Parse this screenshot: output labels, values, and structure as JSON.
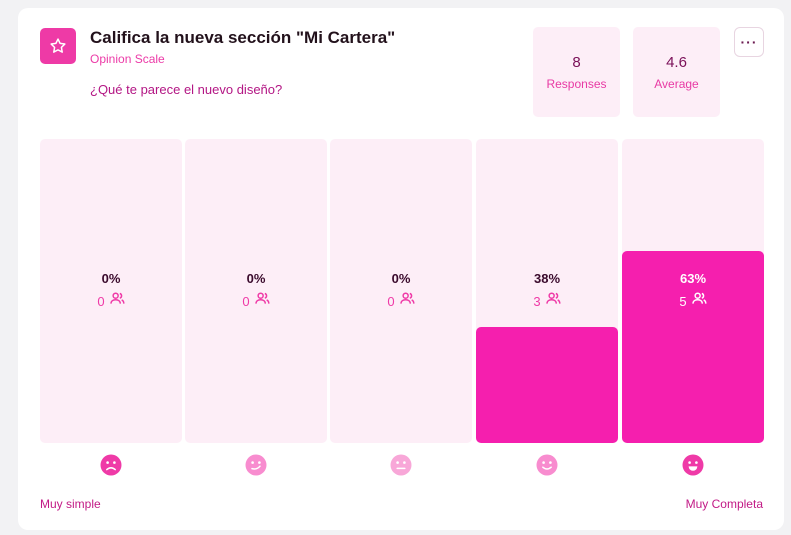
{
  "header": {
    "title": "Califica la nueva sección \"Mi Cartera\"",
    "subtitle": "Opinion Scale",
    "question": "¿Qué te parece el nuevo diseño?",
    "icon": "star-icon"
  },
  "stats": {
    "responses": {
      "value": "8",
      "label": "Responses"
    },
    "average": {
      "value": "4.6",
      "label": "Average"
    }
  },
  "menu": {
    "label": "···",
    "icon": "more-icon"
  },
  "scale": {
    "low_label": "Muy simple",
    "high_label": "Muy Completa"
  },
  "options": [
    {
      "pct": "0%",
      "count": "0",
      "fraction": 0,
      "icon": "frown-face-icon"
    },
    {
      "pct": "0%",
      "count": "0",
      "fraction": 0,
      "icon": "smirk-face-icon"
    },
    {
      "pct": "0%",
      "count": "0",
      "fraction": 0,
      "icon": "neutral-face-icon"
    },
    {
      "pct": "38%",
      "count": "3",
      "fraction": 0.38,
      "icon": "smile-face-icon"
    },
    {
      "pct": "63%",
      "count": "5",
      "fraction": 0.63,
      "icon": "grin-face-icon"
    }
  ],
  "colors": {
    "accent": "#f51fae",
    "bar_background": "#fdeef7"
  }
}
